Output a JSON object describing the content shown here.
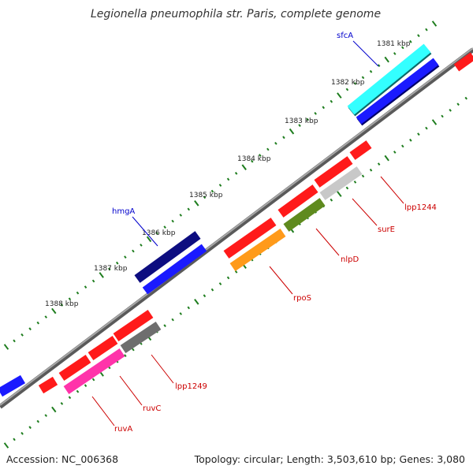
{
  "title": "Legionella pneumophila str. Paris, complete genome",
  "footer": {
    "accession": "Accession: NC_006368",
    "stats": "Topology: circular; Length: 3,503,610 bp; Genes: 3,080"
  },
  "tick_labels": [
    "1381 kbp",
    "1382 kbp",
    "1383 kbp",
    "1384 kbp",
    "1385 kbp",
    "1386 kbp",
    "1387 kbp",
    "1388 kbp"
  ],
  "gene_labels": [
    {
      "name": "sfcA",
      "strand": "plus"
    },
    {
      "name": "hmgA",
      "strand": "plus"
    },
    {
      "name": "lpp1244",
      "strand": "minus"
    },
    {
      "name": "surE",
      "strand": "minus"
    },
    {
      "name": "nlpD",
      "strand": "minus"
    },
    {
      "name": "rpoS",
      "strand": "minus"
    },
    {
      "name": "lpp1249",
      "strand": "minus"
    },
    {
      "name": "ruvC",
      "strand": "minus"
    },
    {
      "name": "ruvA",
      "strand": "minus"
    }
  ],
  "colors": {
    "backbone": "#8a8a8a",
    "ticks": "#1e7d1e",
    "label_plus": "#0000cc",
    "label_minus": "#cc0000",
    "red": "#ff1a1a",
    "blue": "#1a1aff",
    "navy": "#0d0d80",
    "cyan": "#33ffff",
    "silver": "#c8c8c8",
    "olive": "#5f8a1e",
    "orange": "#ff9a1a",
    "gray": "#6e6e6e",
    "magenta": "#ff33aa"
  }
}
